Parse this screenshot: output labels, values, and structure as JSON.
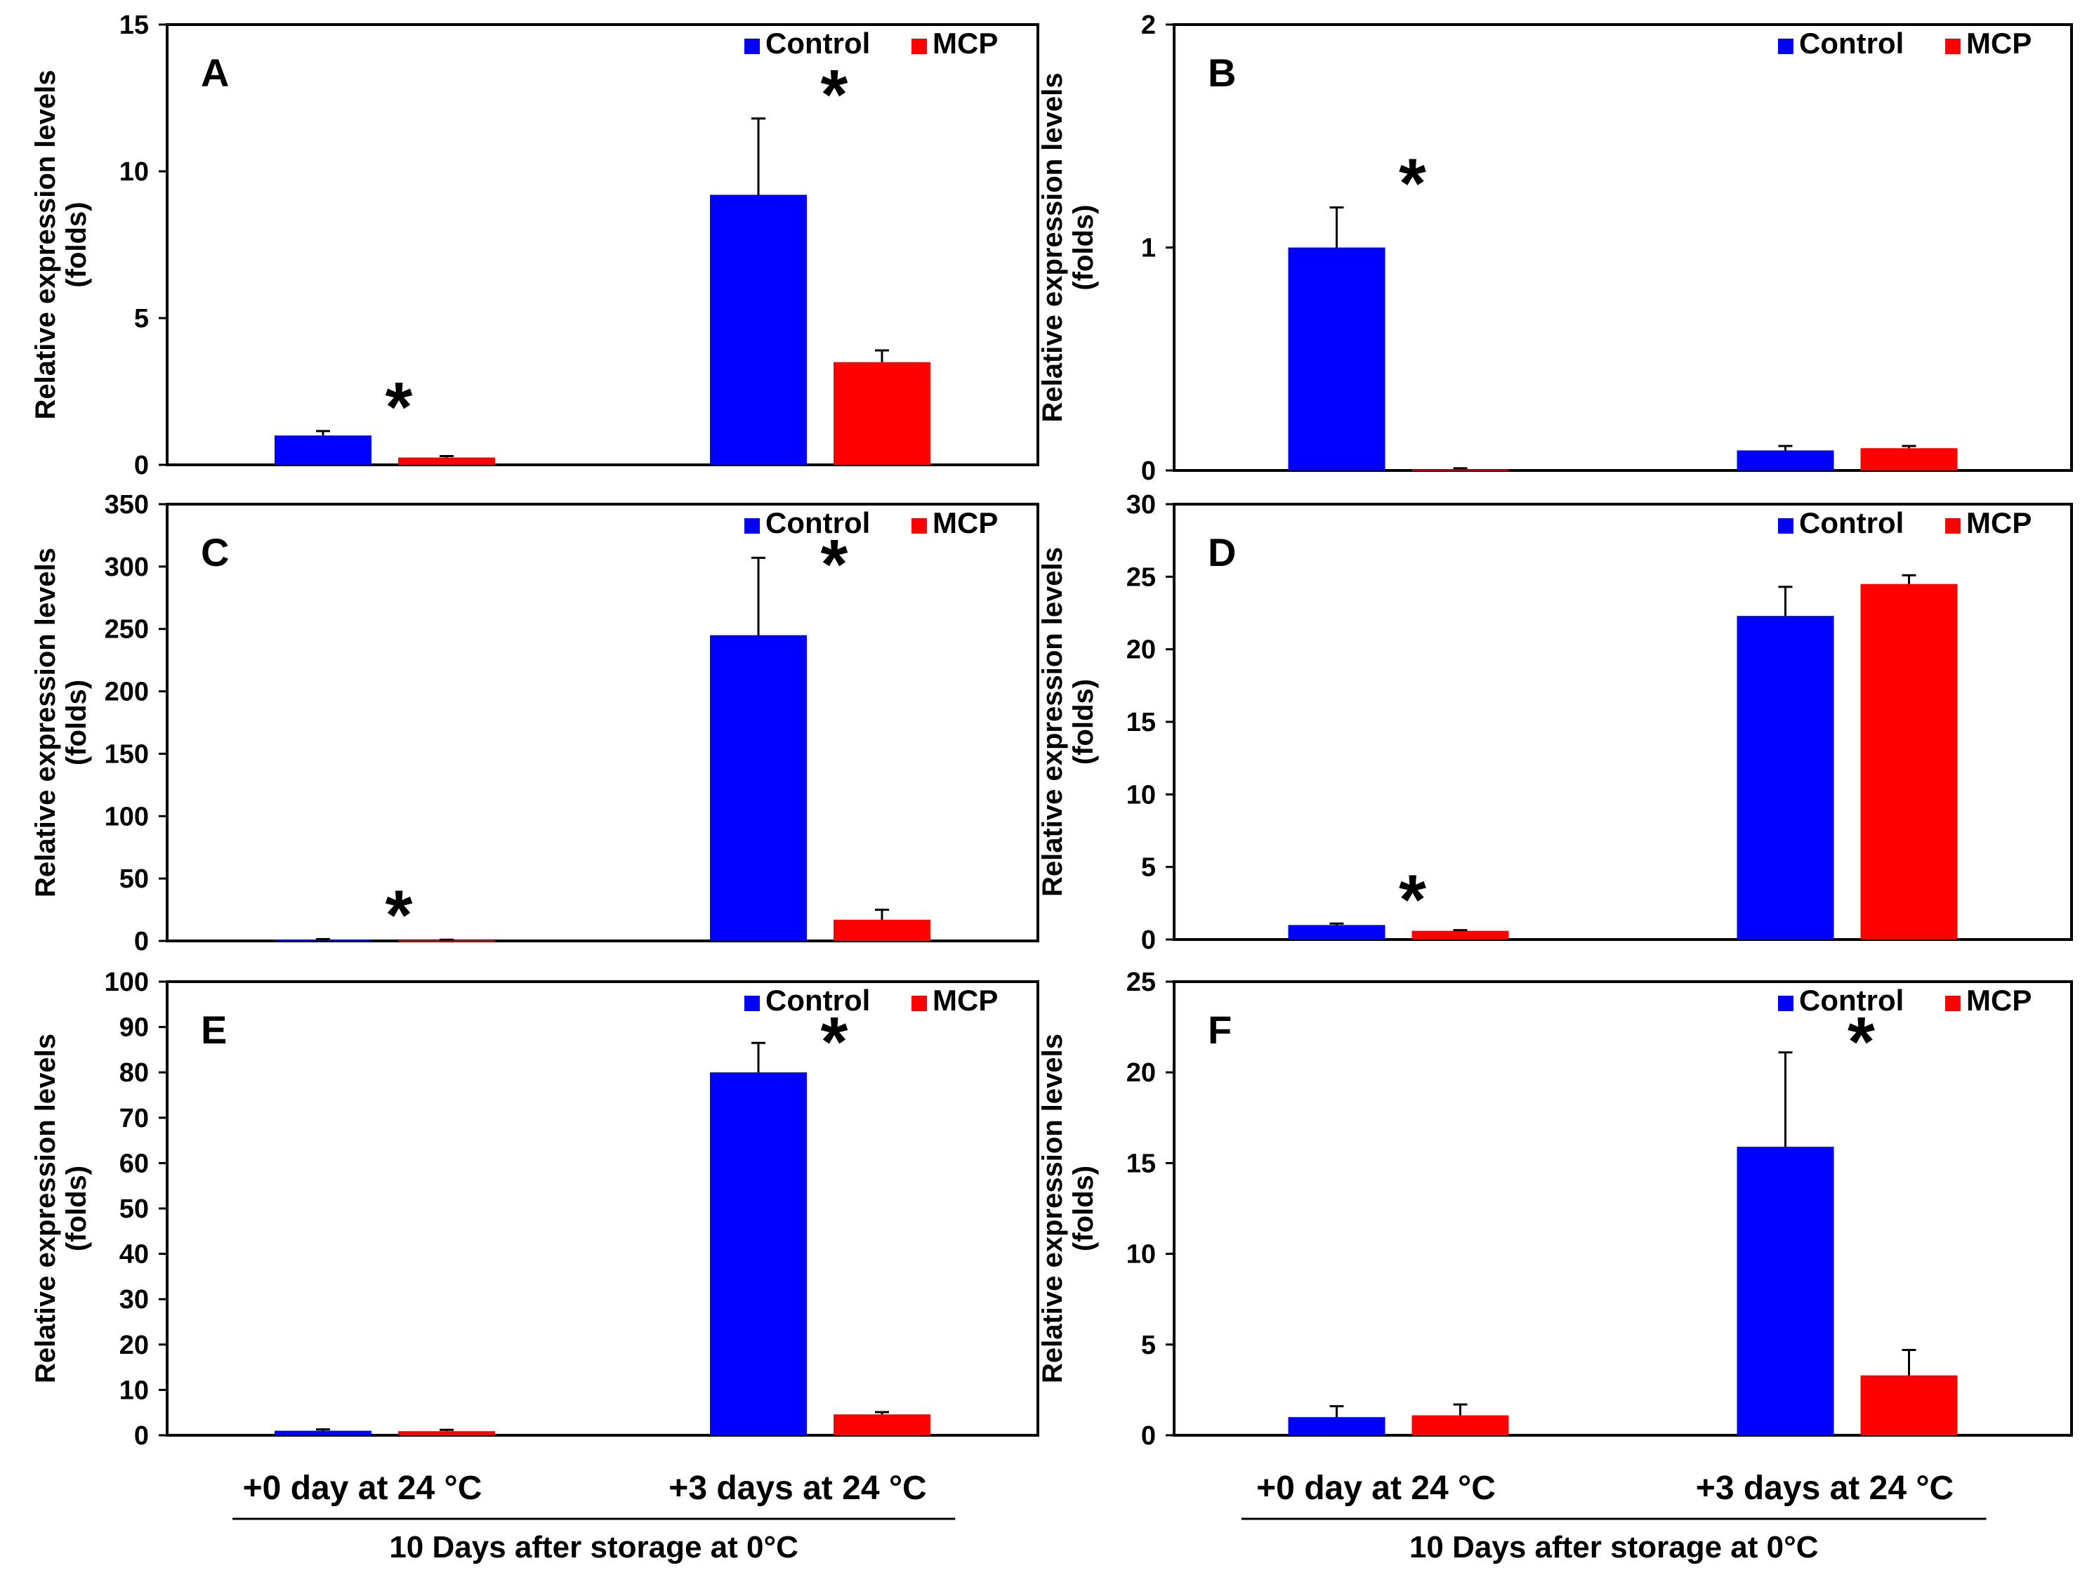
{
  "figure": {
    "groups": [
      "+0 day at 24 °C",
      "+3 days at 24 °C"
    ],
    "footer": "10 Days after storage at 0°C",
    "colors": {
      "control": "#0000ff",
      "mcp": "#ff0000"
    }
  },
  "chart_data": [
    {
      "type": "bar",
      "panel": "A",
      "ylabel": [
        "Relative expression levels",
        "(folds)"
      ],
      "ylim": [
        0,
        15
      ],
      "yticks": [
        0,
        5,
        10,
        15
      ],
      "categories": [
        "+0 day at 24 °C",
        "+3 days at 24 °C"
      ],
      "series": [
        {
          "name": "Control",
          "values": [
            1.0,
            9.2
          ],
          "errors": [
            0.15,
            2.6
          ]
        },
        {
          "name": "MCP",
          "values": [
            0.25,
            3.5
          ],
          "errors": [
            0.05,
            0.4
          ]
        }
      ],
      "annotations": [
        {
          "text": "*",
          "category": 0
        },
        {
          "text": "*",
          "category": 1
        }
      ],
      "legend": "top-right"
    },
    {
      "type": "bar",
      "panel": "B",
      "ylabel": [
        "Relative expression levels",
        "(folds)"
      ],
      "ylim": [
        0,
        2
      ],
      "yticks": [
        0,
        1,
        2
      ],
      "categories": [
        "+0 day at 24 °C",
        "+3 days at 24 °C"
      ],
      "series": [
        {
          "name": "Control",
          "values": [
            1.0,
            0.09
          ],
          "errors": [
            0.18,
            0.02
          ]
        },
        {
          "name": "MCP",
          "values": [
            0.005,
            0.1
          ],
          "errors": [
            0.005,
            0.01
          ]
        }
      ],
      "annotations": [
        {
          "text": "*",
          "category": 0
        }
      ],
      "legend": "top-right"
    },
    {
      "type": "bar",
      "panel": "C",
      "ylabel": [
        "Relative expression levels",
        "(folds)"
      ],
      "ylim": [
        0,
        350
      ],
      "yticks": [
        0,
        50,
        100,
        150,
        200,
        250,
        300,
        350
      ],
      "categories": [
        "+0 day at 24 °C",
        "+3 days at 24 °C"
      ],
      "series": [
        {
          "name": "Control",
          "values": [
            1.0,
            245
          ],
          "errors": [
            0.5,
            62
          ]
        },
        {
          "name": "MCP",
          "values": [
            0.6,
            17
          ],
          "errors": [
            0.4,
            8
          ]
        }
      ],
      "annotations": [
        {
          "text": "*",
          "category": 0
        },
        {
          "text": "*",
          "category": 1
        }
      ],
      "legend": "top-right"
    },
    {
      "type": "bar",
      "panel": "D",
      "ylabel": [
        "Relative expression levels",
        "(folds)"
      ],
      "ylim": [
        0,
        30
      ],
      "yticks": [
        0,
        5,
        10,
        15,
        20,
        25,
        30
      ],
      "categories": [
        "+0 day at 24 °C",
        "+3 days at 24 °C"
      ],
      "series": [
        {
          "name": "Control",
          "values": [
            1.0,
            22.3
          ],
          "errors": [
            0.1,
            2.0
          ]
        },
        {
          "name": "MCP",
          "values": [
            0.6,
            24.5
          ],
          "errors": [
            0.05,
            0.6
          ]
        }
      ],
      "annotations": [
        {
          "text": "*",
          "category": 0
        }
      ],
      "legend": "top-right"
    },
    {
      "type": "bar",
      "panel": "E",
      "ylabel": [
        "Relative expression levels",
        "(folds)"
      ],
      "ylim": [
        0,
        100
      ],
      "yticks": [
        0,
        10,
        20,
        30,
        40,
        50,
        60,
        70,
        80,
        90,
        100
      ],
      "categories": [
        "+0 day at 24 °C",
        "+3 days at 24 °C"
      ],
      "series": [
        {
          "name": "Control",
          "values": [
            1.0,
            80
          ],
          "errors": [
            0.3,
            6.5
          ]
        },
        {
          "name": "MCP",
          "values": [
            0.9,
            4.6
          ],
          "errors": [
            0.3,
            0.5
          ]
        }
      ],
      "annotations": [
        {
          "text": "*",
          "category": 1
        }
      ],
      "legend": "top-right"
    },
    {
      "type": "bar",
      "panel": "F",
      "ylabel": [
        "Relative expression levels",
        "(folds)"
      ],
      "ylim": [
        0,
        25
      ],
      "yticks": [
        0,
        5,
        10,
        15,
        20,
        25
      ],
      "categories": [
        "+0 day at 24 °C",
        "+3 days at 24 °C"
      ],
      "series": [
        {
          "name": "Control",
          "values": [
            1.0,
            15.9
          ],
          "errors": [
            0.6,
            5.2
          ]
        },
        {
          "name": "MCP",
          "values": [
            1.1,
            3.3
          ],
          "errors": [
            0.6,
            1.4
          ]
        }
      ],
      "annotations": [
        {
          "text": "*",
          "category": 1
        }
      ],
      "legend": "top-right"
    }
  ]
}
